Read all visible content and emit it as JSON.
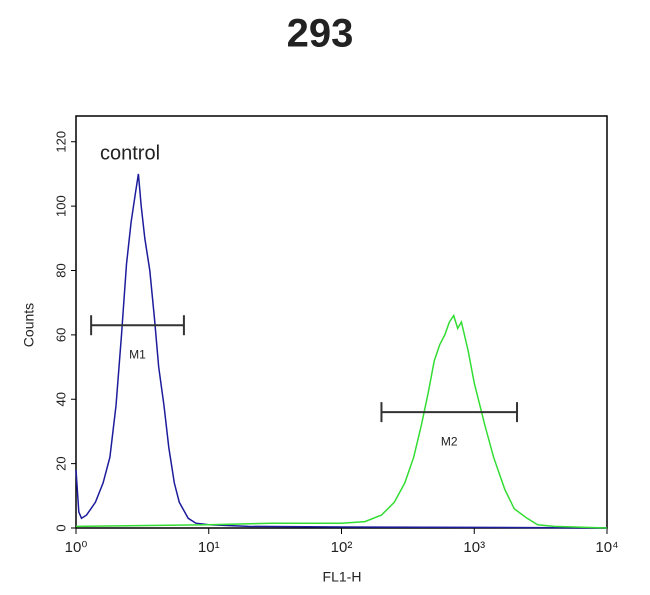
{
  "chart_data": {
    "type": "line",
    "title": "293",
    "xlabel": "FL1-H",
    "ylabel": "Counts",
    "annotation": "control",
    "xscale": "log",
    "xlim": [
      1,
      10000
    ],
    "ylim": [
      0,
      128
    ],
    "xticks": [
      {
        "value": 1,
        "label": "10⁰"
      },
      {
        "value": 10,
        "label": "10¹"
      },
      {
        "value": 100,
        "label": "10²"
      },
      {
        "value": 1000,
        "label": "10³"
      },
      {
        "value": 10000,
        "label": "10⁴"
      }
    ],
    "yticks": [
      0,
      20,
      40,
      60,
      80,
      100,
      120
    ],
    "series": [
      {
        "name": "control",
        "color": "#1c1c9c",
        "x": [
          1.0,
          1.05,
          1.1,
          1.2,
          1.4,
          1.6,
          1.8,
          2.0,
          2.2,
          2.4,
          2.6,
          2.8,
          2.95,
          3.1,
          3.3,
          3.6,
          3.9,
          4.2,
          4.6,
          5.0,
          5.5,
          6.0,
          7,
          8,
          10,
          20,
          100,
          1000,
          10000
        ],
        "values": [
          18,
          5,
          3,
          4,
          8,
          14,
          22,
          38,
          60,
          82,
          95,
          104,
          110,
          100,
          90,
          80,
          65,
          50,
          38,
          25,
          14,
          8,
          3,
          1.5,
          1,
          0.5,
          0.3,
          0.2,
          0
        ]
      },
      {
        "color": "#33dd33",
        "x": [
          1,
          10,
          30,
          100,
          150,
          200,
          250,
          300,
          350,
          400,
          450,
          500,
          550,
          600,
          650,
          700,
          750,
          800,
          900,
          1000,
          1200,
          1400,
          1700,
          2000,
          2500,
          3000,
          4000,
          10000
        ],
        "values": [
          0.5,
          1,
          1.5,
          1.5,
          2,
          4,
          8,
          14,
          22,
          32,
          42,
          52,
          57,
          60,
          64,
          66,
          62,
          64,
          55,
          45,
          32,
          22,
          12,
          6,
          3,
          1,
          0.5,
          0
        ]
      }
    ],
    "markers": [
      {
        "label": "M1",
        "range": [
          1.3,
          6.5
        ],
        "y": 63
      },
      {
        "label": "M2",
        "range": [
          200,
          2100
        ],
        "y": 36
      }
    ]
  }
}
